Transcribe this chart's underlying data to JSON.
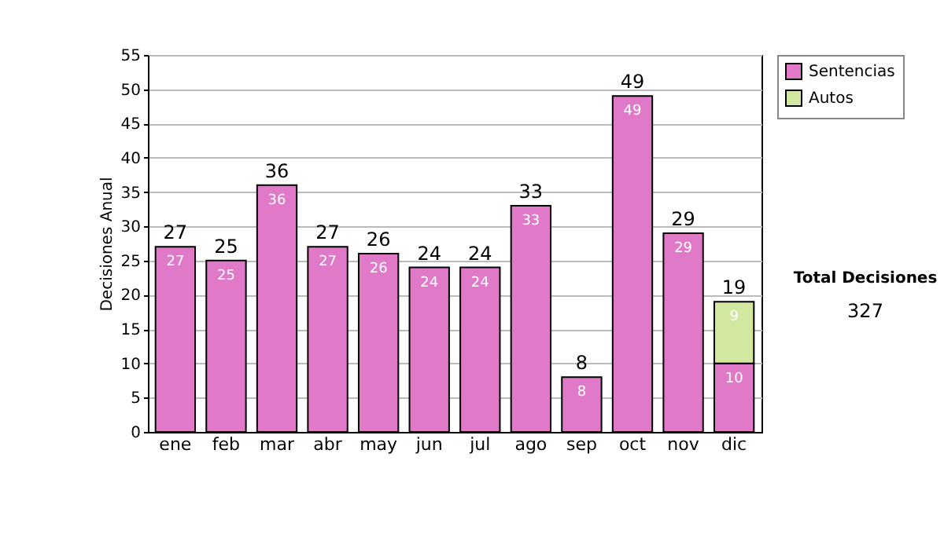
{
  "chart_data": {
    "type": "bar",
    "ylabel": "Decisiones Anual",
    "categories": [
      "ene",
      "feb",
      "mar",
      "abr",
      "may",
      "jun",
      "jul",
      "ago",
      "sep",
      "oct",
      "nov",
      "dic"
    ],
    "series": [
      {
        "name": "Sentencias",
        "color": "#e07ac8",
        "values": [
          27,
          25,
          36,
          27,
          26,
          24,
          24,
          33,
          8,
          49,
          29,
          10
        ]
      },
      {
        "name": "Autos",
        "color": "#d2e8a0",
        "values": [
          null,
          null,
          null,
          null,
          null,
          null,
          null,
          null,
          null,
          null,
          null,
          9
        ]
      }
    ],
    "stacked": true,
    "data_labels": true,
    "totals": [
      "27",
      "25",
      "36",
      "27",
      "26",
      "24",
      "24",
      "33",
      "8",
      "49",
      "29",
      "19"
    ],
    "ylim": [
      0,
      55
    ],
    "yticks": [
      0,
      5,
      10,
      15,
      20,
      25,
      30,
      35,
      40,
      45,
      50,
      55
    ],
    "grid": "y",
    "legend": "right",
    "annotations": [
      "Total Decisiones",
      "327"
    ]
  }
}
